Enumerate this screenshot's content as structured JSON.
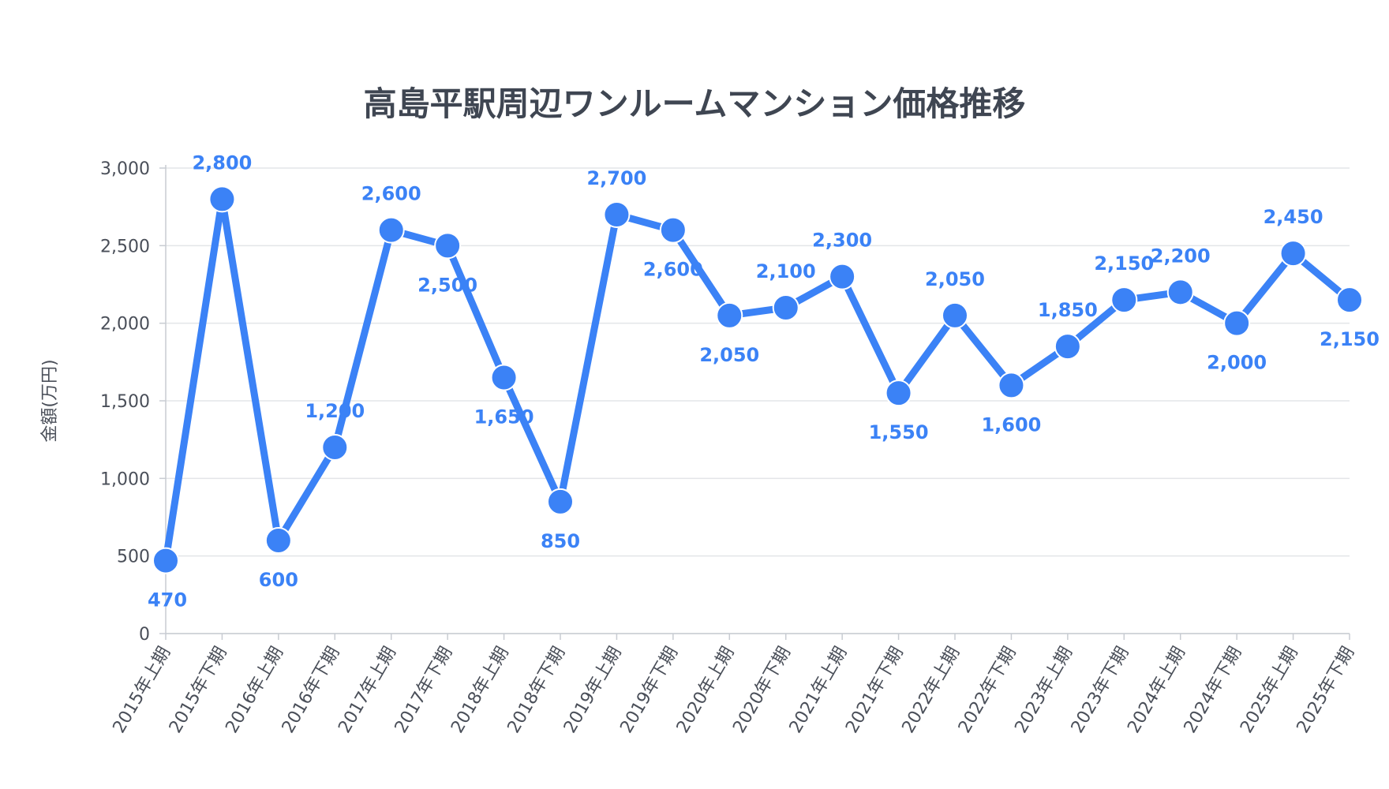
{
  "chart_data": {
    "type": "line",
    "title": "高島平駅周辺ワンルームマンション価格推移",
    "ylabel": "金額(万円)",
    "xlabel": "",
    "ylim": [
      0,
      3000
    ],
    "yticks": [
      0,
      500,
      1000,
      1500,
      2000,
      2500,
      3000
    ],
    "ytick_labels": [
      "0",
      "500",
      "1,000",
      "1,500",
      "2,000",
      "2,500",
      "3,000"
    ],
    "grid": true,
    "color": "#3b82f6",
    "x": [
      "2015年上期",
      "2015年下期",
      "2016年上期",
      "2016年下期",
      "2017年上期",
      "2017年下期",
      "2018年上期",
      "2018年下期",
      "2019年上期",
      "2019年下期",
      "2020年上期",
      "2020年下期",
      "2021年上期",
      "2021年下期",
      "2022年上期",
      "2022年下期",
      "2023年上期",
      "2023年下期",
      "2024年上期",
      "2024年下期",
      "2025年上期",
      "2025年下期"
    ],
    "values": [
      470,
      2800,
      600,
      1200,
      2600,
      2500,
      1650,
      850,
      2700,
      2600,
      2050,
      2100,
      2300,
      1550,
      2050,
      1600,
      1850,
      2150,
      2200,
      2000,
      2450,
      2150
    ],
    "value_labels": [
      "470",
      "2,800",
      "600",
      "1,200",
      "2,600",
      "2,500",
      "1,650",
      "850",
      "2,700",
      "2,600",
      "2,050",
      "2,100",
      "2,300",
      "1,550",
      "2,050",
      "1,600",
      "1,850",
      "2,150",
      "2,200",
      "2,000",
      "2,450",
      "2,150"
    ]
  }
}
